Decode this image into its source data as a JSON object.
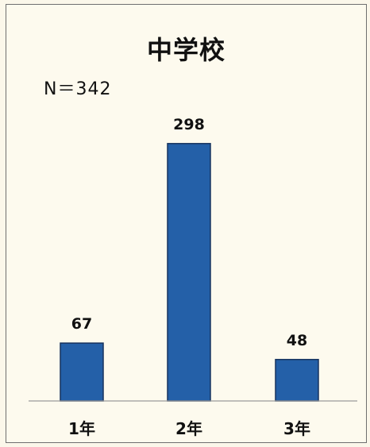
{
  "chart_data": {
    "type": "bar",
    "title": "中学校",
    "subtitle": "N＝342",
    "categories": [
      "1年",
      "2年",
      "3年"
    ],
    "values": [
      67,
      298,
      48
    ],
    "data_labels": [
      "67",
      "298",
      "48"
    ],
    "xlabel": "",
    "ylabel": "",
    "ylim": [
      0,
      330
    ],
    "grid": false,
    "bar_color": "#2460a8",
    "bar_edge_color": "#17325e"
  }
}
